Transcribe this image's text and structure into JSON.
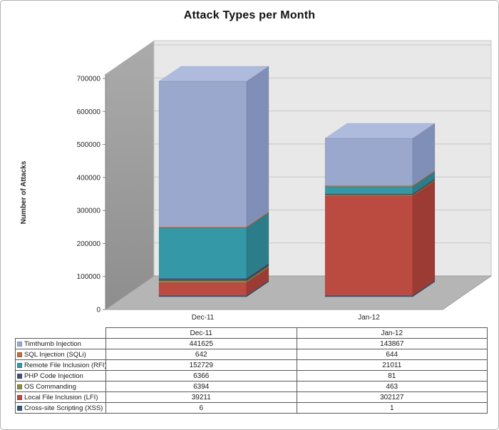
{
  "title": "Attack Types per Month",
  "chart_data": {
    "type": "bar",
    "subtype": "3d-stacked-column",
    "title": "Attack Types per Month",
    "xlabel": "",
    "ylabel": "Number of Attacks",
    "ylim": [
      0,
      700000
    ],
    "ytick_step": 100000,
    "yticks": [
      0,
      100000,
      200000,
      300000,
      400000,
      500000,
      600000,
      700000
    ],
    "grid": true,
    "legend_position": "bottom-table",
    "categories": [
      "Dec-11",
      "Jan-12"
    ],
    "series": [
      {
        "name": "Timthumb Injection",
        "values": [
          441625,
          143867
        ],
        "color": "#9AA8CE",
        "side_color": "#7F8FB8",
        "top_color": "#AEBBDC"
      },
      {
        "name": "SQL Injection (SQLi)",
        "values": [
          642,
          644
        ],
        "color": "#BE7240",
        "side_color": "#9E5B30",
        "top_color": "#CB8352"
      },
      {
        "name": "Remote File Inclusion (RFI)",
        "values": [
          152729,
          21011
        ],
        "color": "#3598A6",
        "side_color": "#2B7D89",
        "top_color": "#49AAB7"
      },
      {
        "name": "PHP Code Injection",
        "values": [
          6366,
          81
        ],
        "color": "#3F517E",
        "side_color": "#344268",
        "top_color": "#4E6193"
      },
      {
        "name": "OS Commanding",
        "values": [
          6394,
          463
        ],
        "color": "#8F8C44",
        "side_color": "#757236",
        "top_color": "#A09D52"
      },
      {
        "name": "Local File Inclusion (LFI)",
        "values": [
          39211,
          302127
        ],
        "color": "#BB4A41",
        "side_color": "#9C3B34",
        "top_color": "#C75A50"
      },
      {
        "name": "Cross-site Scripting (XSS)",
        "values": [
          6,
          1
        ],
        "color": "#33547E",
        "side_color": "#2A4568",
        "top_color": "#3F6390"
      }
    ],
    "stack_order_bottom_to_top": [
      "Cross-site Scripting (XSS)",
      "Local File Inclusion (LFI)",
      "OS Commanding",
      "PHP Code Injection",
      "Remote File Inclusion (RFI)",
      "SQL Injection (SQLi)",
      "Timthumb Injection"
    ],
    "totals": {
      "Dec-11": 646973,
      "Jan-12": 468194
    }
  },
  "table": {
    "corner_label": ""
  },
  "colors": {
    "back_wall": "#E8E8E8",
    "side_wall_light": "#A8A8A8",
    "side_wall_dark": "#8E8E8E",
    "floor": "#B5B5B5",
    "gridline": "#C6C6C6",
    "axis_line": "#808080",
    "tick_text": "#262626",
    "table_border": "#595959",
    "frame_border": "#B3B3B3",
    "title_text": "#121212"
  }
}
